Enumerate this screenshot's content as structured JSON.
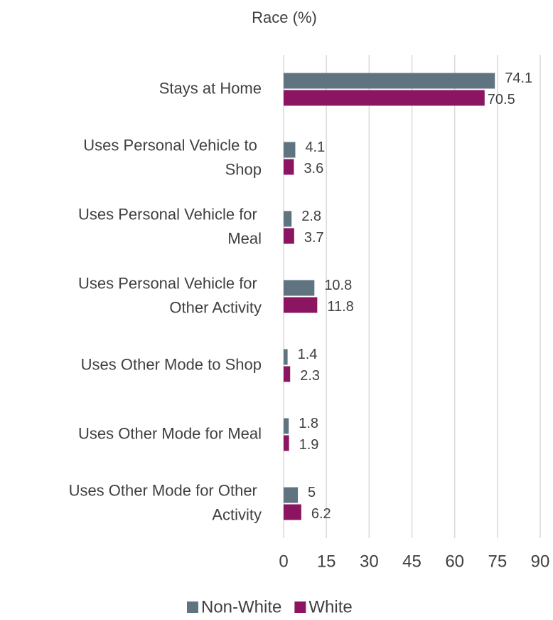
{
  "chart_data": {
    "type": "bar",
    "orientation": "horizontal",
    "title": "Race (%)",
    "categories": [
      "Stays at Home",
      "Uses Personal Vehicle to Shop",
      "Uses Personal Vehicle for Meal",
      "Uses Personal Vehicle for Other Activity",
      "Uses Other Mode to Shop",
      "Uses Other Mode for Meal",
      "Uses Other Mode for Other Activity"
    ],
    "series": [
      {
        "name": "Non-White",
        "color": "#5f7480",
        "values": [
          74.1,
          4.1,
          2.8,
          10.8,
          1.4,
          1.8,
          5
        ]
      },
      {
        "name": "White",
        "color": "#8b1560",
        "values": [
          70.5,
          3.6,
          3.7,
          11.8,
          2.3,
          1.9,
          6.2
        ]
      }
    ],
    "xlim": [
      0,
      90
    ],
    "xticks": [
      0,
      15,
      30,
      45,
      60,
      75,
      90
    ],
    "grid": true,
    "legend": "bottom"
  }
}
